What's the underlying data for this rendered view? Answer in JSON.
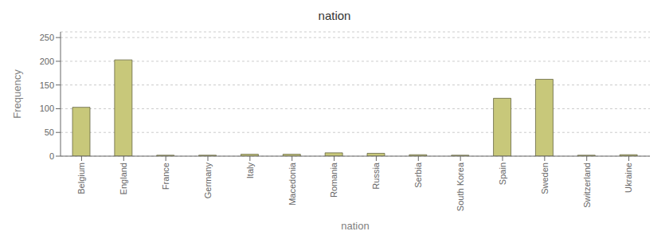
{
  "chart_data": {
    "type": "bar",
    "title": "nation",
    "xlabel": "nation",
    "ylabel": "Frequency",
    "categories": [
      "Belgium",
      "England",
      "France",
      "Germany",
      "Italy",
      "Macedonia",
      "Romania",
      "Russia",
      "Serbia",
      "South Korea",
      "Spain",
      "Sweden",
      "Switzerland",
      "Ukraine"
    ],
    "values": [
      103,
      203,
      2,
      2,
      4,
      4,
      7,
      6,
      3,
      2,
      122,
      162,
      2,
      3
    ],
    "color": "#c8c87a",
    "ylim": [
      0,
      262
    ],
    "yticks": [
      0,
      50,
      100,
      150,
      200,
      250
    ],
    "grid": true
  }
}
